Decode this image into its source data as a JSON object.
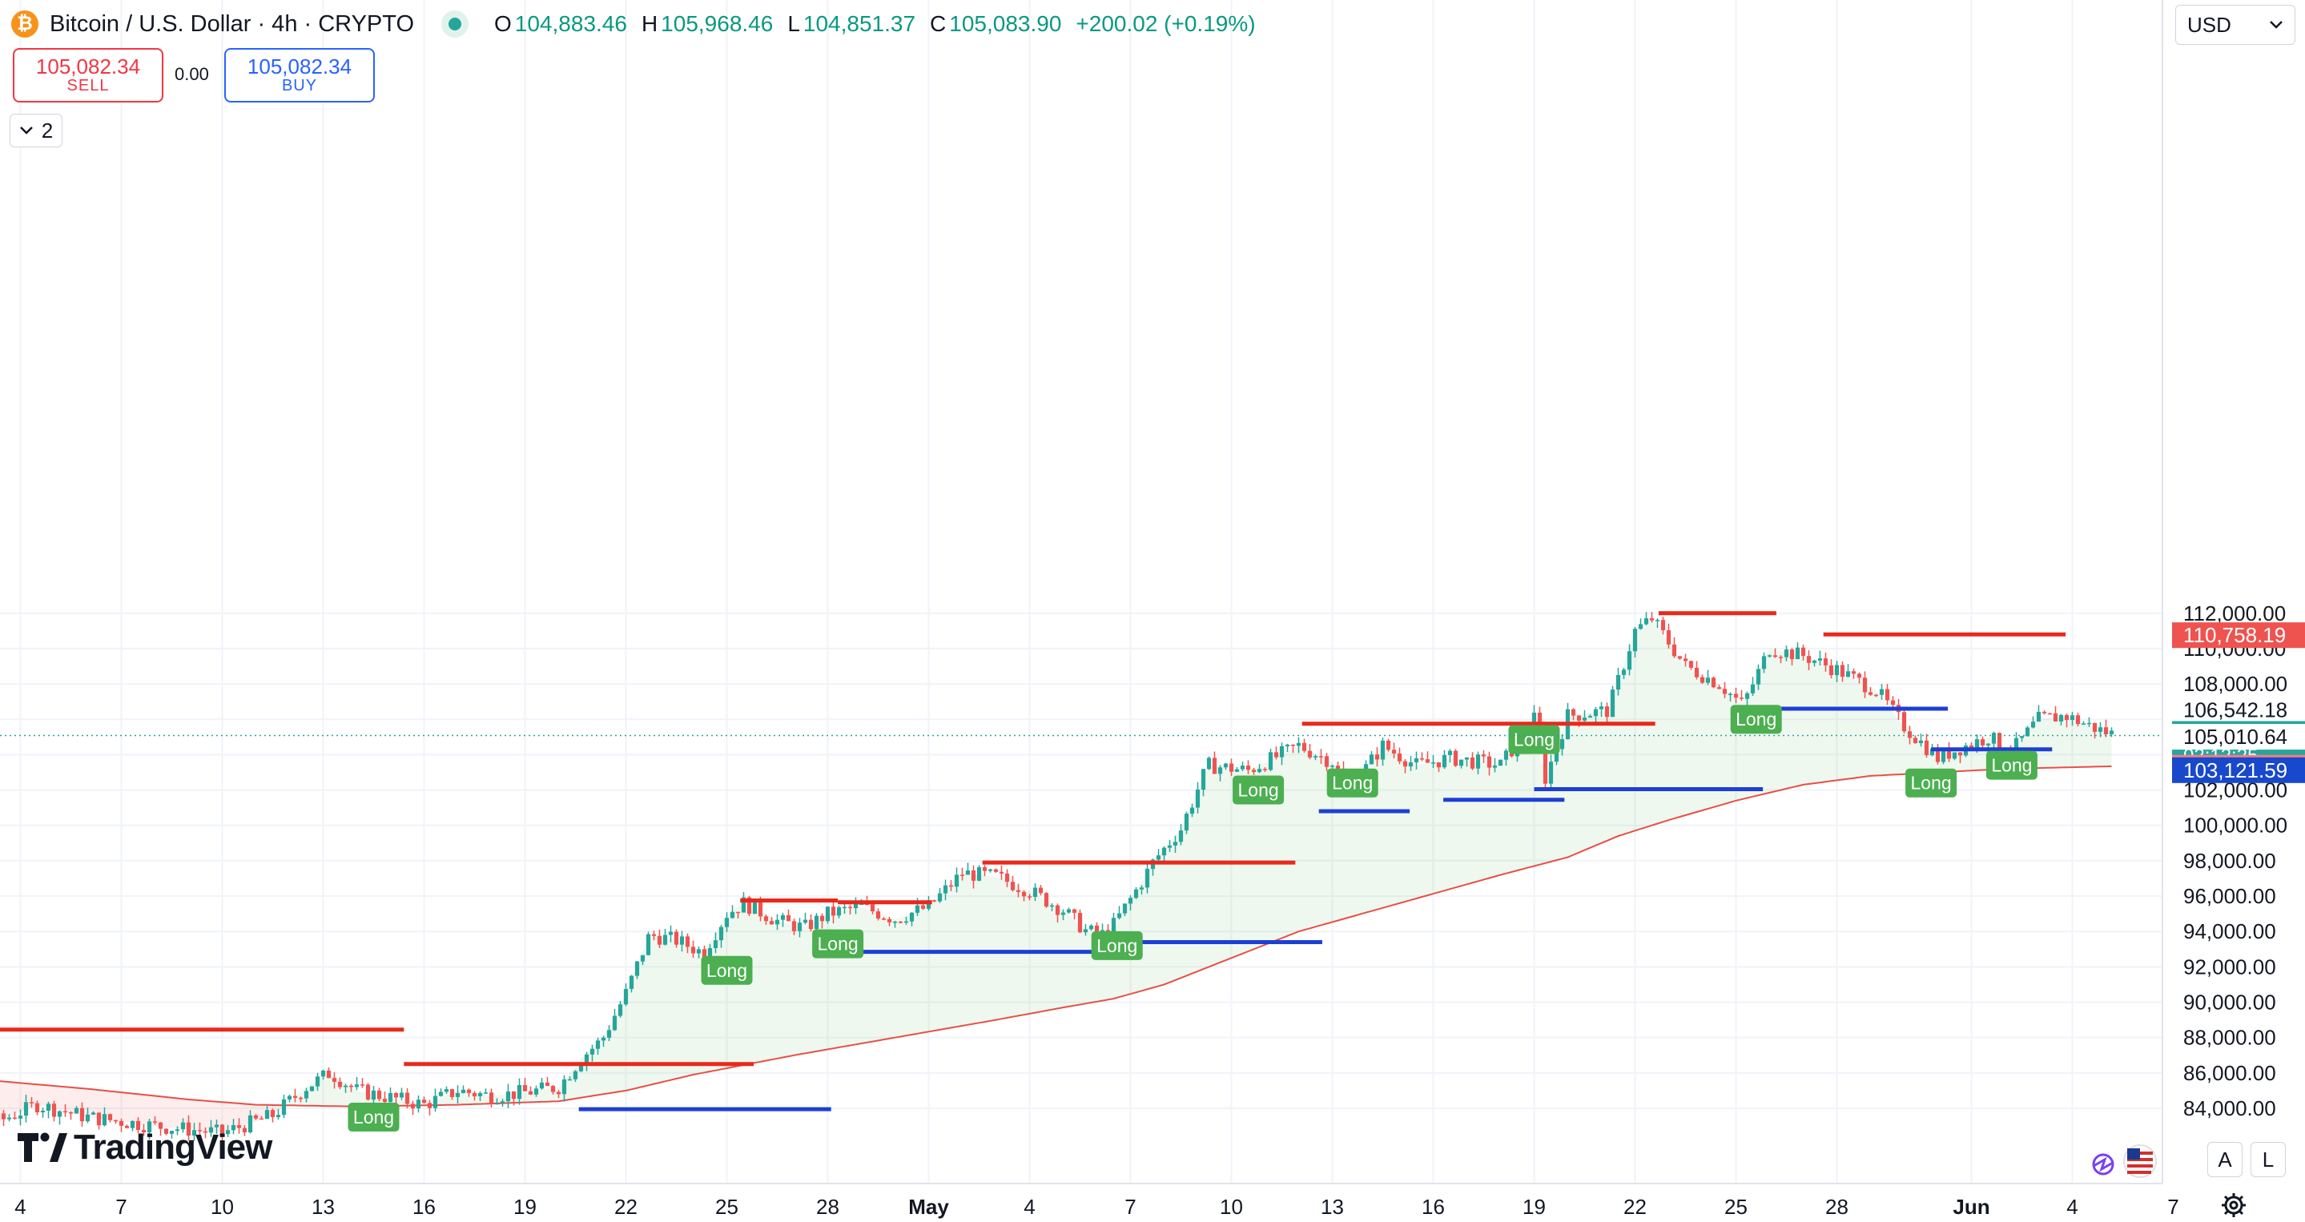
{
  "header": {
    "symbol": "Bitcoin / U.S. Dollar · 4h · CRYPTO",
    "coin_icon": "bitcoin-icon",
    "ohlc": [
      {
        "k": "O",
        "v": "104,883.46"
      },
      {
        "k": "H",
        "v": "105,968.46"
      },
      {
        "k": "L",
        "v": "104,851.37"
      },
      {
        "k": "C",
        "v": "105,083.90"
      }
    ],
    "change": "+200.02 (+0.19%)"
  },
  "trade": {
    "sell_price": "105,082.34",
    "sell_label": "SELL",
    "spread": "0.00",
    "buy_price": "105,082.34",
    "buy_label": "BUY"
  },
  "indicators_toggle": {
    "count": "2",
    "icon": "chevron-down-icon"
  },
  "currency": {
    "value": "USD",
    "icon": "chevron-down-icon"
  },
  "brand": {
    "name": "TradingView"
  },
  "controls": {
    "a_label": "A",
    "l_label": "L",
    "settings_icon": "gear-icon",
    "flags_icon": "us-flag-icon"
  },
  "colors": {
    "up": "#26a69a",
    "down": "#ef5350",
    "resistance": "#e8291c",
    "support": "#1d3fd6",
    "signal": "#4caf50",
    "ma": "#e84f45"
  },
  "chart_data": {
    "type": "candlestick",
    "interval": "4h",
    "ylim": [
      82200,
      114000
    ],
    "y_ticks": [
      {
        "v": 84000,
        "label": "84,000.00"
      },
      {
        "v": 86000,
        "label": "86,000.00"
      },
      {
        "v": 88000,
        "label": "88,000.00"
      },
      {
        "v": 90000,
        "label": "90,000.00"
      },
      {
        "v": 92000,
        "label": "92,000.00"
      },
      {
        "v": 94000,
        "label": "94,000.00"
      },
      {
        "v": 96000,
        "label": "96,000.00"
      },
      {
        "v": 98000,
        "label": "98,000.00"
      },
      {
        "v": 100000,
        "label": "100,000.00"
      },
      {
        "v": 102000,
        "label": "102,000.00"
      },
      {
        "v": 104000,
        "label": "104,000.00"
      },
      {
        "v": 106000,
        "label": "106,000.00"
      },
      {
        "v": 108000,
        "label": "108,000.00"
      },
      {
        "v": 110000,
        "label": "110,000.00"
      },
      {
        "v": 112000,
        "label": "112,000.00"
      }
    ],
    "x_ticks": [
      {
        "d": 4,
        "label": "4"
      },
      {
        "d": 7,
        "label": "7"
      },
      {
        "d": 10,
        "label": "10"
      },
      {
        "d": 13,
        "label": "13"
      },
      {
        "d": 16,
        "label": "16"
      },
      {
        "d": 19,
        "label": "19"
      },
      {
        "d": 22,
        "label": "22"
      },
      {
        "d": 25,
        "label": "25"
      },
      {
        "d": 28,
        "label": "28"
      },
      {
        "d": 31,
        "label": "May",
        "bold": true
      },
      {
        "d": 34,
        "label": "4"
      },
      {
        "d": 37,
        "label": "7"
      },
      {
        "d": 40,
        "label": "10"
      },
      {
        "d": 43,
        "label": "13"
      },
      {
        "d": 46,
        "label": "16"
      },
      {
        "d": 49,
        "label": "19"
      },
      {
        "d": 52,
        "label": "22"
      },
      {
        "d": 55,
        "label": "25"
      },
      {
        "d": 58,
        "label": "28"
      },
      {
        "d": 62,
        "label": "Jun",
        "bold": true
      },
      {
        "d": 65,
        "label": "4"
      },
      {
        "d": 68,
        "label": "7"
      }
    ],
    "price_path": [
      [
        3.4,
        83300
      ],
      [
        4.5,
        84200
      ],
      [
        6,
        83500
      ],
      [
        8,
        83000
      ],
      [
        10,
        82600
      ],
      [
        11.5,
        83600
      ],
      [
        12.5,
        85200
      ],
      [
        13.2,
        86000
      ],
      [
        14,
        85000
      ],
      [
        15,
        84600
      ],
      [
        16,
        84200
      ],
      [
        17,
        85000
      ],
      [
        18,
        84700
      ],
      [
        19,
        84900
      ],
      [
        20,
        85200
      ],
      [
        20.7,
        86900
      ],
      [
        21.3,
        87900
      ],
      [
        22,
        90500
      ],
      [
        22.7,
        93800
      ],
      [
        23.5,
        93500
      ],
      [
        24.3,
        92800
      ],
      [
        25,
        95000
      ],
      [
        25.5,
        95600
      ],
      [
        26.5,
        94600
      ],
      [
        27.3,
        94200
      ],
      [
        28,
        95000
      ],
      [
        29,
        95400
      ],
      [
        30,
        94700
      ],
      [
        31,
        95400
      ],
      [
        32,
        97300
      ],
      [
        33,
        97100
      ],
      [
        34,
        96300
      ],
      [
        35,
        95200
      ],
      [
        35.7,
        94000
      ],
      [
        36.3,
        93800
      ],
      [
        37.3,
        96700
      ],
      [
        37.7,
        98000
      ],
      [
        38.5,
        99800
      ],
      [
        39.3,
        103400
      ],
      [
        40.5,
        103100
      ],
      [
        42,
        104500
      ],
      [
        43,
        103600
      ],
      [
        43.5,
        102000
      ],
      [
        44.5,
        104500
      ],
      [
        45.5,
        103400
      ],
      [
        46.5,
        103800
      ],
      [
        48,
        103400
      ],
      [
        49,
        106000
      ],
      [
        49.3,
        102500
      ],
      [
        50,
        106200
      ],
      [
        51.2,
        106500
      ],
      [
        52,
        111000
      ],
      [
        52.5,
        111700
      ],
      [
        53.5,
        109000
      ],
      [
        54.5,
        108000
      ],
      [
        55.2,
        106800
      ],
      [
        56,
        110000
      ],
      [
        57,
        109600
      ],
      [
        58,
        108800
      ],
      [
        59.2,
        107600
      ],
      [
        60,
        105600
      ],
      [
        61,
        103800
      ],
      [
        61.7,
        104400
      ],
      [
        62.5,
        105000
      ],
      [
        63.2,
        104200
      ],
      [
        64,
        106000
      ],
      [
        64.8,
        106200
      ],
      [
        65.8,
        105400
      ],
      [
        66.3,
        105100
      ]
    ],
    "ma_path": [
      [
        0,
        86000
      ],
      [
        3,
        85600
      ],
      [
        6,
        85100
      ],
      [
        9,
        84500
      ],
      [
        11,
        84200
      ],
      [
        14,
        84100
      ],
      [
        17,
        84200
      ],
      [
        20,
        84400
      ],
      [
        22,
        85000
      ],
      [
        24,
        85900
      ],
      [
        27,
        87000
      ],
      [
        30,
        88000
      ],
      [
        33,
        89000
      ],
      [
        35,
        89700
      ],
      [
        36.5,
        90200
      ],
      [
        38,
        91000
      ],
      [
        40,
        92500
      ],
      [
        42,
        94000
      ],
      [
        45,
        95600
      ],
      [
        48,
        97200
      ],
      [
        50,
        98200
      ],
      [
        51.5,
        99400
      ],
      [
        53,
        100300
      ],
      [
        55,
        101400
      ],
      [
        57,
        102300
      ],
      [
        59,
        102800
      ],
      [
        61,
        103000
      ],
      [
        63,
        103200
      ],
      [
        66.3,
        103350
      ]
    ],
    "last_price": 105083.9,
    "price_labels": [
      {
        "v": 110758.19,
        "label": "110,758.19",
        "bg": "#ef5350",
        "fg": "#ffffff"
      },
      {
        "v": 106542.18,
        "label": "106,542.18",
        "bg": "#ffffff",
        "fg": "#131722"
      },
      {
        "v": 105083.9,
        "label": "105,083.90",
        "sub": "02:12:25",
        "bg": "#26a69a",
        "fg": "#ffffff"
      },
      {
        "v": 105010.64,
        "label": "105,010.64",
        "bg": "#ffffff",
        "fg": "#131722"
      },
      {
        "v": 103261.41,
        "label": "103,261.41",
        "bg": "#f77c80",
        "fg": "#ffffff"
      },
      {
        "v": 103121.59,
        "label": "103,121.59",
        "bg": "#1848cc",
        "fg": "#ffffff"
      }
    ],
    "resistance_lines": [
      {
        "x1": 0,
        "x2": 15.4,
        "y": 88450
      },
      {
        "x1": 15.4,
        "x2": 25.8,
        "y": 86500
      },
      {
        "x1": 25.4,
        "x2": 28.3,
        "y": 95750
      },
      {
        "x1": 28.3,
        "x2": 31.1,
        "y": 95650
      },
      {
        "x1": 32.6,
        "x2": 41.9,
        "y": 97900
      },
      {
        "x1": 42.1,
        "x2": 52.6,
        "y": 105750
      },
      {
        "x1": 52.7,
        "x2": 56.2,
        "y": 112000
      },
      {
        "x1": 57.6,
        "x2": 64.8,
        "y": 110800
      }
    ],
    "support_lines": [
      {
        "x1": 20.6,
        "x2": 28.1,
        "y": 83950
      },
      {
        "x1": 28.0,
        "x2": 36.2,
        "y": 92850
      },
      {
        "x1": 36.0,
        "x2": 42.7,
        "y": 93400
      },
      {
        "x1": 42.6,
        "x2": 45.3,
        "y": 100800
      },
      {
        "x1": 46.3,
        "x2": 49.9,
        "y": 101450
      },
      {
        "x1": 49.0,
        "x2": 55.8,
        "y": 102050
      },
      {
        "x1": 55.7,
        "x2": 61.3,
        "y": 106600
      },
      {
        "x1": 60.8,
        "x2": 64.4,
        "y": 104300
      }
    ],
    "signals": [
      {
        "x": 14.5,
        "y": 83500,
        "label": "Long"
      },
      {
        "x": 25.0,
        "y": 91800,
        "label": "Long"
      },
      {
        "x": 28.3,
        "y": 93300,
        "label": "Long"
      },
      {
        "x": 36.6,
        "y": 93200,
        "label": "Long"
      },
      {
        "x": 40.8,
        "y": 102000,
        "label": "Long"
      },
      {
        "x": 43.6,
        "y": 102400,
        "label": "Long"
      },
      {
        "x": 49.0,
        "y": 104850,
        "label": "Long"
      },
      {
        "x": 55.6,
        "y": 106000,
        "label": "Long"
      },
      {
        "x": 60.8,
        "y": 102400,
        "label": "Long"
      },
      {
        "x": 63.2,
        "y": 103400,
        "label": "Long"
      }
    ]
  }
}
